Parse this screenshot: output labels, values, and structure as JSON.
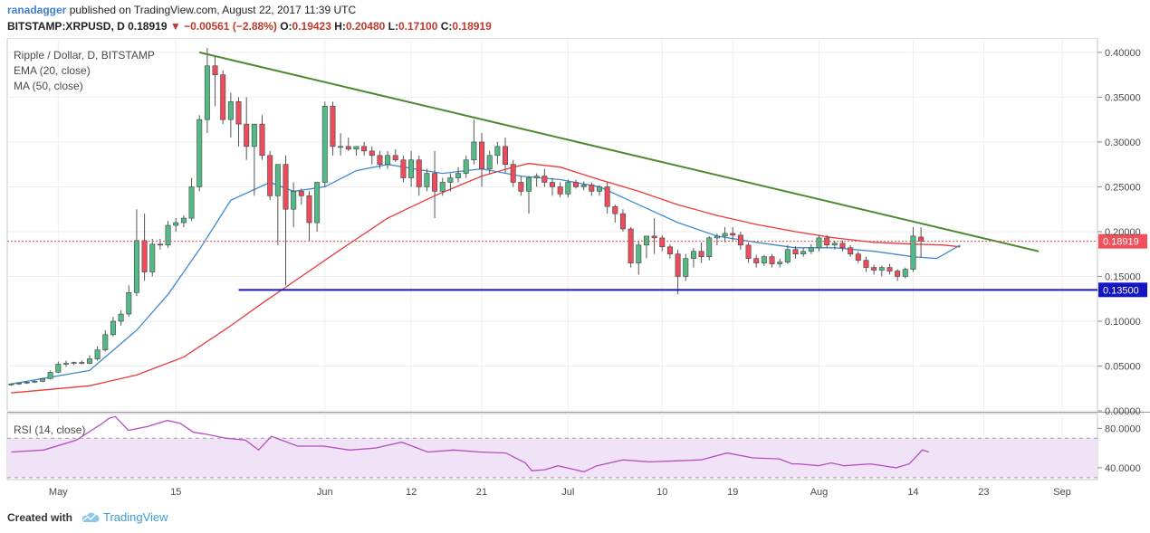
{
  "header": {
    "author": "ranadagger",
    "published_text": "published on TradingView.com, August 22, 2017 11:39 UTC"
  },
  "quote": {
    "symbol": "BITSTAMP:XRPUSD, D",
    "last": "0.18919",
    "change_arrow": "▼",
    "change": "−0.00561 (−2.88%)",
    "open_label": "O:",
    "open": "0.19423",
    "high_label": "H:",
    "high": "0.20480",
    "low_label": "L:",
    "low": "0.17100",
    "close_label": "C:",
    "close": "0.18919"
  },
  "footer": {
    "created_with": "Created with",
    "brand": "TradingView"
  },
  "colors": {
    "up": "#53b987",
    "down": "#eb4d5c",
    "ema": "#3e8bd0",
    "ma": "#e83a3a",
    "trendline": "#4a8a2e",
    "support": "#1515c4",
    "rsi_line": "#b44ec1",
    "rsi_band": "#f0e2f7"
  },
  "chart_data": [
    {
      "type": "candlestick",
      "title": "Ripple / Dollar, D, BITSTAMP",
      "legend": [
        "EMA (20, close)",
        "MA (50, close)"
      ],
      "legend_placement": "top-left",
      "ylim": [
        0,
        0.41
      ],
      "y_ticks": [
        "0.40000",
        "0.35000",
        "0.30000",
        "0.25000",
        "0.20000",
        "0.15000",
        "0.10000",
        "0.05000",
        "0.00000"
      ],
      "y_tick_values": [
        0.4,
        0.35,
        0.3,
        0.25,
        0.2,
        0.15,
        0.1,
        0.05,
        0.0
      ],
      "x_tick_labels": [
        "May",
        "15",
        "Jun",
        "12",
        "21",
        "Jul",
        "10",
        "19",
        "Aug",
        "14",
        "23",
        "Sep"
      ],
      "x_tick_index": [
        6,
        21,
        40,
        51,
        60,
        71,
        83,
        92,
        103,
        115,
        124,
        134
      ],
      "total_slots": 139,
      "last_price_label": "0.18919",
      "last_price": 0.18919,
      "support_label": "0.13500",
      "support": 0.135,
      "support_range": [
        29,
        139
      ],
      "trendline": {
        "from": [
          24,
          0.4
        ],
        "to": [
          131,
          0.178
        ]
      },
      "grid": true,
      "candles": [
        [
          0.029,
          0.031,
          0.028,
          0.03
        ],
        [
          0.03,
          0.032,
          0.029,
          0.031
        ],
        [
          0.031,
          0.033,
          0.03,
          0.032
        ],
        [
          0.032,
          0.034,
          0.031,
          0.033
        ],
        [
          0.033,
          0.037,
          0.032,
          0.036
        ],
        [
          0.036,
          0.045,
          0.035,
          0.043
        ],
        [
          0.043,
          0.055,
          0.042,
          0.052
        ],
        [
          0.052,
          0.056,
          0.049,
          0.053
        ],
        [
          0.053,
          0.055,
          0.051,
          0.054
        ],
        [
          0.054,
          0.056,
          0.052,
          0.053
        ],
        [
          0.053,
          0.062,
          0.052,
          0.058
        ],
        [
          0.058,
          0.072,
          0.056,
          0.068
        ],
        [
          0.068,
          0.09,
          0.066,
          0.085
        ],
        [
          0.085,
          0.105,
          0.083,
          0.1
        ],
        [
          0.1,
          0.112,
          0.095,
          0.108
        ],
        [
          0.108,
          0.14,
          0.105,
          0.132
        ],
        [
          0.132,
          0.225,
          0.128,
          0.19
        ],
        [
          0.19,
          0.22,
          0.145,
          0.155
        ],
        [
          0.155,
          0.192,
          0.15,
          0.186
        ],
        [
          0.186,
          0.192,
          0.18,
          0.185
        ],
        [
          0.185,
          0.212,
          0.182,
          0.207
        ],
        [
          0.207,
          0.215,
          0.2,
          0.21
        ],
        [
          0.21,
          0.218,
          0.205,
          0.215
        ],
        [
          0.215,
          0.26,
          0.212,
          0.25
        ],
        [
          0.25,
          0.33,
          0.245,
          0.325
        ],
        [
          0.325,
          0.405,
          0.31,
          0.385
        ],
        [
          0.385,
          0.395,
          0.34,
          0.375
        ],
        [
          0.375,
          0.38,
          0.32,
          0.325
        ],
        [
          0.325,
          0.355,
          0.305,
          0.345
        ],
        [
          0.345,
          0.35,
          0.295,
          0.32
        ],
        [
          0.32,
          0.35,
          0.28,
          0.295
        ],
        [
          0.295,
          0.32,
          0.24,
          0.32
        ],
        [
          0.32,
          0.33,
          0.28,
          0.285
        ],
        [
          0.285,
          0.29,
          0.235,
          0.24
        ],
        [
          0.24,
          0.275,
          0.185,
          0.275
        ],
        [
          0.275,
          0.285,
          0.14,
          0.225
        ],
        [
          0.225,
          0.255,
          0.205,
          0.245
        ],
        [
          0.245,
          0.248,
          0.23,
          0.24
        ],
        [
          0.24,
          0.245,
          0.19,
          0.21
        ],
        [
          0.21,
          0.255,
          0.2,
          0.255
        ],
        [
          0.255,
          0.345,
          0.25,
          0.34
        ],
        [
          0.34,
          0.345,
          0.285,
          0.295
        ],
        [
          0.295,
          0.31,
          0.285,
          0.295
        ],
        [
          0.295,
          0.305,
          0.29,
          0.292
        ],
        [
          0.292,
          0.295,
          0.285,
          0.295
        ],
        [
          0.295,
          0.3,
          0.285,
          0.29
        ],
        [
          0.29,
          0.295,
          0.275,
          0.285
        ],
        [
          0.285,
          0.29,
          0.27,
          0.275
        ],
        [
          0.275,
          0.29,
          0.27,
          0.285
        ],
        [
          0.285,
          0.292,
          0.278,
          0.28
        ],
        [
          0.28,
          0.285,
          0.255,
          0.26
        ],
        [
          0.26,
          0.29,
          0.25,
          0.28
        ],
        [
          0.28,
          0.285,
          0.24,
          0.25
        ],
        [
          0.25,
          0.27,
          0.245,
          0.265
        ],
        [
          0.265,
          0.29,
          0.215,
          0.245
        ],
        [
          0.245,
          0.26,
          0.24,
          0.255
        ],
        [
          0.255,
          0.265,
          0.245,
          0.26
        ],
        [
          0.26,
          0.272,
          0.255,
          0.265
        ],
        [
          0.265,
          0.285,
          0.26,
          0.28
        ],
        [
          0.28,
          0.325,
          0.275,
          0.3
        ],
        [
          0.3,
          0.31,
          0.25,
          0.27
        ],
        [
          0.27,
          0.29,
          0.265,
          0.285
        ],
        [
          0.285,
          0.3,
          0.275,
          0.295
        ],
        [
          0.295,
          0.305,
          0.265,
          0.275
        ],
        [
          0.275,
          0.28,
          0.25,
          0.255
        ],
        [
          0.255,
          0.262,
          0.24,
          0.245
        ],
        [
          0.245,
          0.262,
          0.22,
          0.26
        ],
        [
          0.26,
          0.265,
          0.25,
          0.262
        ],
        [
          0.262,
          0.27,
          0.25,
          0.255
        ],
        [
          0.255,
          0.26,
          0.24,
          0.25
        ],
        [
          0.25,
          0.255,
          0.238,
          0.242
        ],
        [
          0.242,
          0.258,
          0.238,
          0.255
        ],
        [
          0.255,
          0.258,
          0.248,
          0.25
        ],
        [
          0.25,
          0.256,
          0.246,
          0.252
        ],
        [
          0.252,
          0.255,
          0.24,
          0.245
        ],
        [
          0.245,
          0.252,
          0.24,
          0.25
        ],
        [
          0.25,
          0.255,
          0.22,
          0.228
        ],
        [
          0.228,
          0.23,
          0.21,
          0.22
        ],
        [
          0.22,
          0.225,
          0.2,
          0.203
        ],
        [
          0.203,
          0.205,
          0.16,
          0.165
        ],
        [
          0.165,
          0.19,
          0.152,
          0.185
        ],
        [
          0.185,
          0.195,
          0.17,
          0.195
        ],
        [
          0.195,
          0.215,
          0.175,
          0.193
        ],
        [
          0.193,
          0.196,
          0.178,
          0.183
        ],
        [
          0.183,
          0.186,
          0.17,
          0.175
        ],
        [
          0.175,
          0.18,
          0.13,
          0.15
        ],
        [
          0.15,
          0.175,
          0.145,
          0.17
        ],
        [
          0.17,
          0.182,
          0.16,
          0.178
        ],
        [
          0.178,
          0.188,
          0.165,
          0.172
        ],
        [
          0.172,
          0.195,
          0.168,
          0.193
        ],
        [
          0.193,
          0.198,
          0.185,
          0.195
        ],
        [
          0.195,
          0.205,
          0.188,
          0.198
        ],
        [
          0.198,
          0.205,
          0.19,
          0.196
        ],
        [
          0.196,
          0.2,
          0.18,
          0.185
        ],
        [
          0.185,
          0.188,
          0.165,
          0.17
        ],
        [
          0.17,
          0.174,
          0.16,
          0.165
        ],
        [
          0.165,
          0.174,
          0.162,
          0.172
        ],
        [
          0.172,
          0.175,
          0.16,
          0.164
        ],
        [
          0.164,
          0.17,
          0.16,
          0.166
        ],
        [
          0.166,
          0.185,
          0.164,
          0.18
        ],
        [
          0.18,
          0.184,
          0.17,
          0.175
        ],
        [
          0.175,
          0.182,
          0.172,
          0.178
        ],
        [
          0.178,
          0.186,
          0.175,
          0.182
        ],
        [
          0.182,
          0.196,
          0.178,
          0.193
        ],
        [
          0.193,
          0.196,
          0.182,
          0.185
        ],
        [
          0.185,
          0.19,
          0.18,
          0.187
        ],
        [
          0.187,
          0.19,
          0.178,
          0.182
        ],
        [
          0.182,
          0.185,
          0.172,
          0.175
        ],
        [
          0.175,
          0.178,
          0.165,
          0.168
        ],
        [
          0.168,
          0.172,
          0.155,
          0.16
        ],
        [
          0.16,
          0.163,
          0.152,
          0.157
        ],
        [
          0.157,
          0.162,
          0.15,
          0.16
        ],
        [
          0.16,
          0.164,
          0.152,
          0.156
        ],
        [
          0.156,
          0.158,
          0.145,
          0.15
        ],
        [
          0.15,
          0.16,
          0.148,
          0.158
        ],
        [
          0.158,
          0.205,
          0.155,
          0.195
        ],
        [
          0.194,
          0.2048,
          0.171,
          0.18919
        ]
      ],
      "candle_start_index": 0,
      "ema_20": [
        [
          0,
          0.03
        ],
        [
          10,
          0.045
        ],
        [
          16,
          0.09
        ],
        [
          20,
          0.13
        ],
        [
          24,
          0.18
        ],
        [
          28,
          0.235
        ],
        [
          33,
          0.255
        ],
        [
          36,
          0.245
        ],
        [
          40,
          0.25
        ],
        [
          44,
          0.268
        ],
        [
          48,
          0.275
        ],
        [
          55,
          0.265
        ],
        [
          60,
          0.27
        ],
        [
          65,
          0.262
        ],
        [
          70,
          0.258
        ],
        [
          75,
          0.25
        ],
        [
          80,
          0.23
        ],
        [
          85,
          0.21
        ],
        [
          90,
          0.195
        ],
        [
          95,
          0.188
        ],
        [
          100,
          0.182
        ],
        [
          105,
          0.182
        ],
        [
          110,
          0.178
        ],
        [
          115,
          0.172
        ],
        [
          118,
          0.17
        ],
        [
          121,
          0.185
        ]
      ],
      "ma_50": [
        [
          0,
          0.02
        ],
        [
          10,
          0.028
        ],
        [
          16,
          0.04
        ],
        [
          22,
          0.06
        ],
        [
          28,
          0.095
        ],
        [
          32,
          0.12
        ],
        [
          37,
          0.15
        ],
        [
          42,
          0.18
        ],
        [
          48,
          0.215
        ],
        [
          54,
          0.24
        ],
        [
          60,
          0.262
        ],
        [
          64,
          0.272
        ],
        [
          66,
          0.276
        ],
        [
          70,
          0.272
        ],
        [
          75,
          0.258
        ],
        [
          80,
          0.245
        ],
        [
          85,
          0.23
        ],
        [
          90,
          0.218
        ],
        [
          95,
          0.208
        ],
        [
          100,
          0.2
        ],
        [
          105,
          0.193
        ],
        [
          110,
          0.188
        ],
        [
          115,
          0.186
        ],
        [
          119,
          0.185
        ],
        [
          121,
          0.183
        ]
      ]
    },
    {
      "type": "line",
      "title": "RSI (14, close)",
      "ylim": [
        28,
        95
      ],
      "y_ticks": [
        "80.0000",
        "40.0000"
      ],
      "y_tick_values": [
        80,
        40
      ],
      "band": [
        30,
        70
      ],
      "values": [
        [
          0,
          56
        ],
        [
          5,
          58
        ],
        [
          10,
          68
        ],
        [
          14,
          85
        ],
        [
          15,
          90
        ],
        [
          16,
          92
        ],
        [
          18,
          78
        ],
        [
          21,
          82
        ],
        [
          24,
          88
        ],
        [
          26,
          85
        ],
        [
          28,
          76
        ],
        [
          30,
          74
        ],
        [
          33,
          70
        ],
        [
          36,
          68
        ],
        [
          38,
          58
        ],
        [
          40,
          72
        ],
        [
          44,
          62
        ],
        [
          48,
          62
        ],
        [
          52,
          58
        ],
        [
          56,
          60
        ],
        [
          60,
          66
        ],
        [
          64,
          56
        ],
        [
          68,
          58
        ],
        [
          72,
          56
        ],
        [
          76,
          55
        ],
        [
          79,
          45
        ],
        [
          80,
          37
        ],
        [
          82,
          38
        ],
        [
          84,
          42
        ],
        [
          86,
          39
        ],
        [
          88,
          36
        ],
        [
          90,
          42
        ],
        [
          94,
          48
        ],
        [
          98,
          46
        ],
        [
          102,
          47
        ],
        [
          106,
          48
        ],
        [
          110,
          55
        ],
        [
          114,
          50
        ],
        [
          118,
          49
        ],
        [
          120,
          44
        ],
        [
          121,
          44
        ],
        [
          124,
          42
        ],
        [
          126,
          45
        ],
        [
          128,
          42
        ],
        [
          132,
          44
        ],
        [
          136,
          40
        ],
        [
          138,
          44
        ],
        [
          140,
          58
        ],
        [
          141,
          56
        ]
      ]
    }
  ]
}
